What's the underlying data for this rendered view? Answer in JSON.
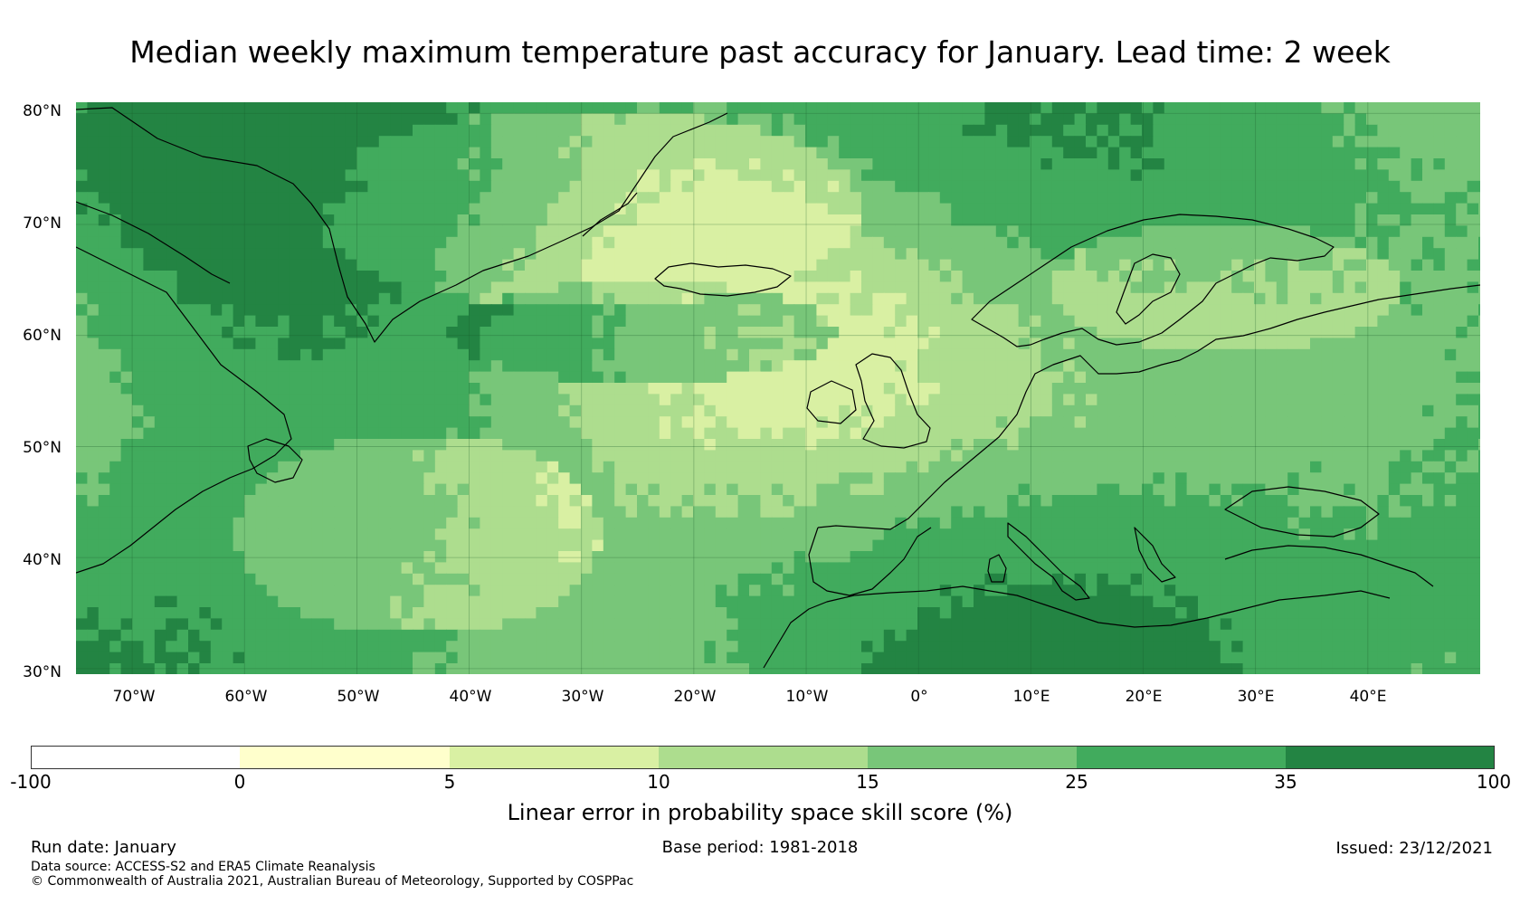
{
  "title": "Median weekly maximum temperature past accuracy for January. Lead time: 2 week",
  "map": {
    "lat_labels": [
      "80°N",
      "70°N",
      "60°N",
      "50°N",
      "40°N",
      "30°N"
    ],
    "lon_labels": [
      "70°W",
      "60°W",
      "50°W",
      "40°W",
      "30°W",
      "20°W",
      "10°W",
      "0°",
      "10°E",
      "20°E",
      "30°E",
      "40°E"
    ],
    "extent": {
      "lon_min": -75,
      "lon_max": 50,
      "lat_min": 29.5,
      "lat_max": 81
    }
  },
  "colorbar": {
    "ticks": [
      "-100",
      "0",
      "5",
      "10",
      "15",
      "25",
      "35",
      "100"
    ],
    "colors": [
      "#ffffff",
      "#ffffcc",
      "#d9f0a3",
      "#addd8e",
      "#78c679",
      "#41ab5d",
      "#238443"
    ],
    "label": "Linear error in probability space skill score (%)"
  },
  "footer": {
    "run_date": "Run date: January",
    "base_period": "Base period: 1981-2018",
    "issued": "Issued: 23/12/2021",
    "data_source": "Data source: ACCESS-S2 and ERA5 Climate Reanalysis",
    "copyright": "© Commonwealth of Australia 2021, Australian Bureau of Meteorology, Supported by COSPPac"
  }
}
